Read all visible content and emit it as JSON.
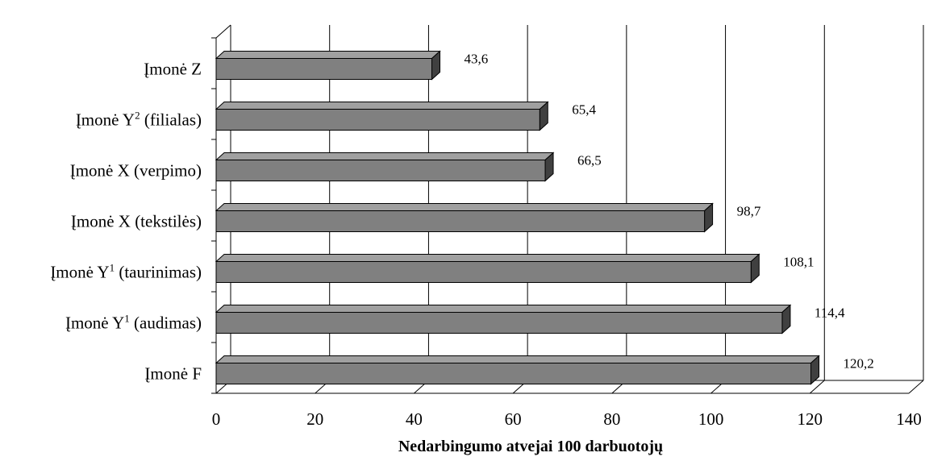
{
  "chart_data": {
    "type": "bar",
    "orientation": "horizontal",
    "categories": [
      "Įmonė Z",
      "Įmonė Y² (filialas)",
      "Įmonė X (verpimo)",
      "Įmonė X (tekstilės)",
      "Įmonė Y¹ (taurinimas)",
      "Įmonė Y¹ (audimas)",
      "Įmonė F"
    ],
    "category_labels": [
      {
        "base": "Įmonė Z",
        "sup": "",
        "rest": ""
      },
      {
        "base": "Įmonė Y",
        "sup": "2",
        "rest": " (filialas)"
      },
      {
        "base": "Įmonė X (verpimo)",
        "sup": "",
        "rest": ""
      },
      {
        "base": "Įmonė X (tekstilės)",
        "sup": "",
        "rest": ""
      },
      {
        "base": "Įmonė Y",
        "sup": "1",
        "rest": " (taurinimas)"
      },
      {
        "base": "Įmonė Y",
        "sup": "1",
        "rest": " (audimas)"
      },
      {
        "base": "Įmonė F",
        "sup": "",
        "rest": ""
      }
    ],
    "values": [
      43.6,
      65.4,
      66.5,
      98.7,
      108.1,
      114.4,
      120.2
    ],
    "value_labels": [
      "43,6",
      "65,4",
      "66,5",
      "98,7",
      "108,1",
      "114,4",
      "120,2"
    ],
    "xlim": [
      0,
      140
    ],
    "x_ticks": [
      0,
      20,
      40,
      60,
      80,
      100,
      120,
      140
    ],
    "xlabel": "Nedarbingumo atvejai 100 darbuotojų",
    "title": "",
    "grid": "vertical",
    "style": "3d",
    "colors": {
      "bar_front": "#808080",
      "bar_top": "#a0a0a0",
      "bar_side": "#404040",
      "grid": "#000000"
    }
  }
}
